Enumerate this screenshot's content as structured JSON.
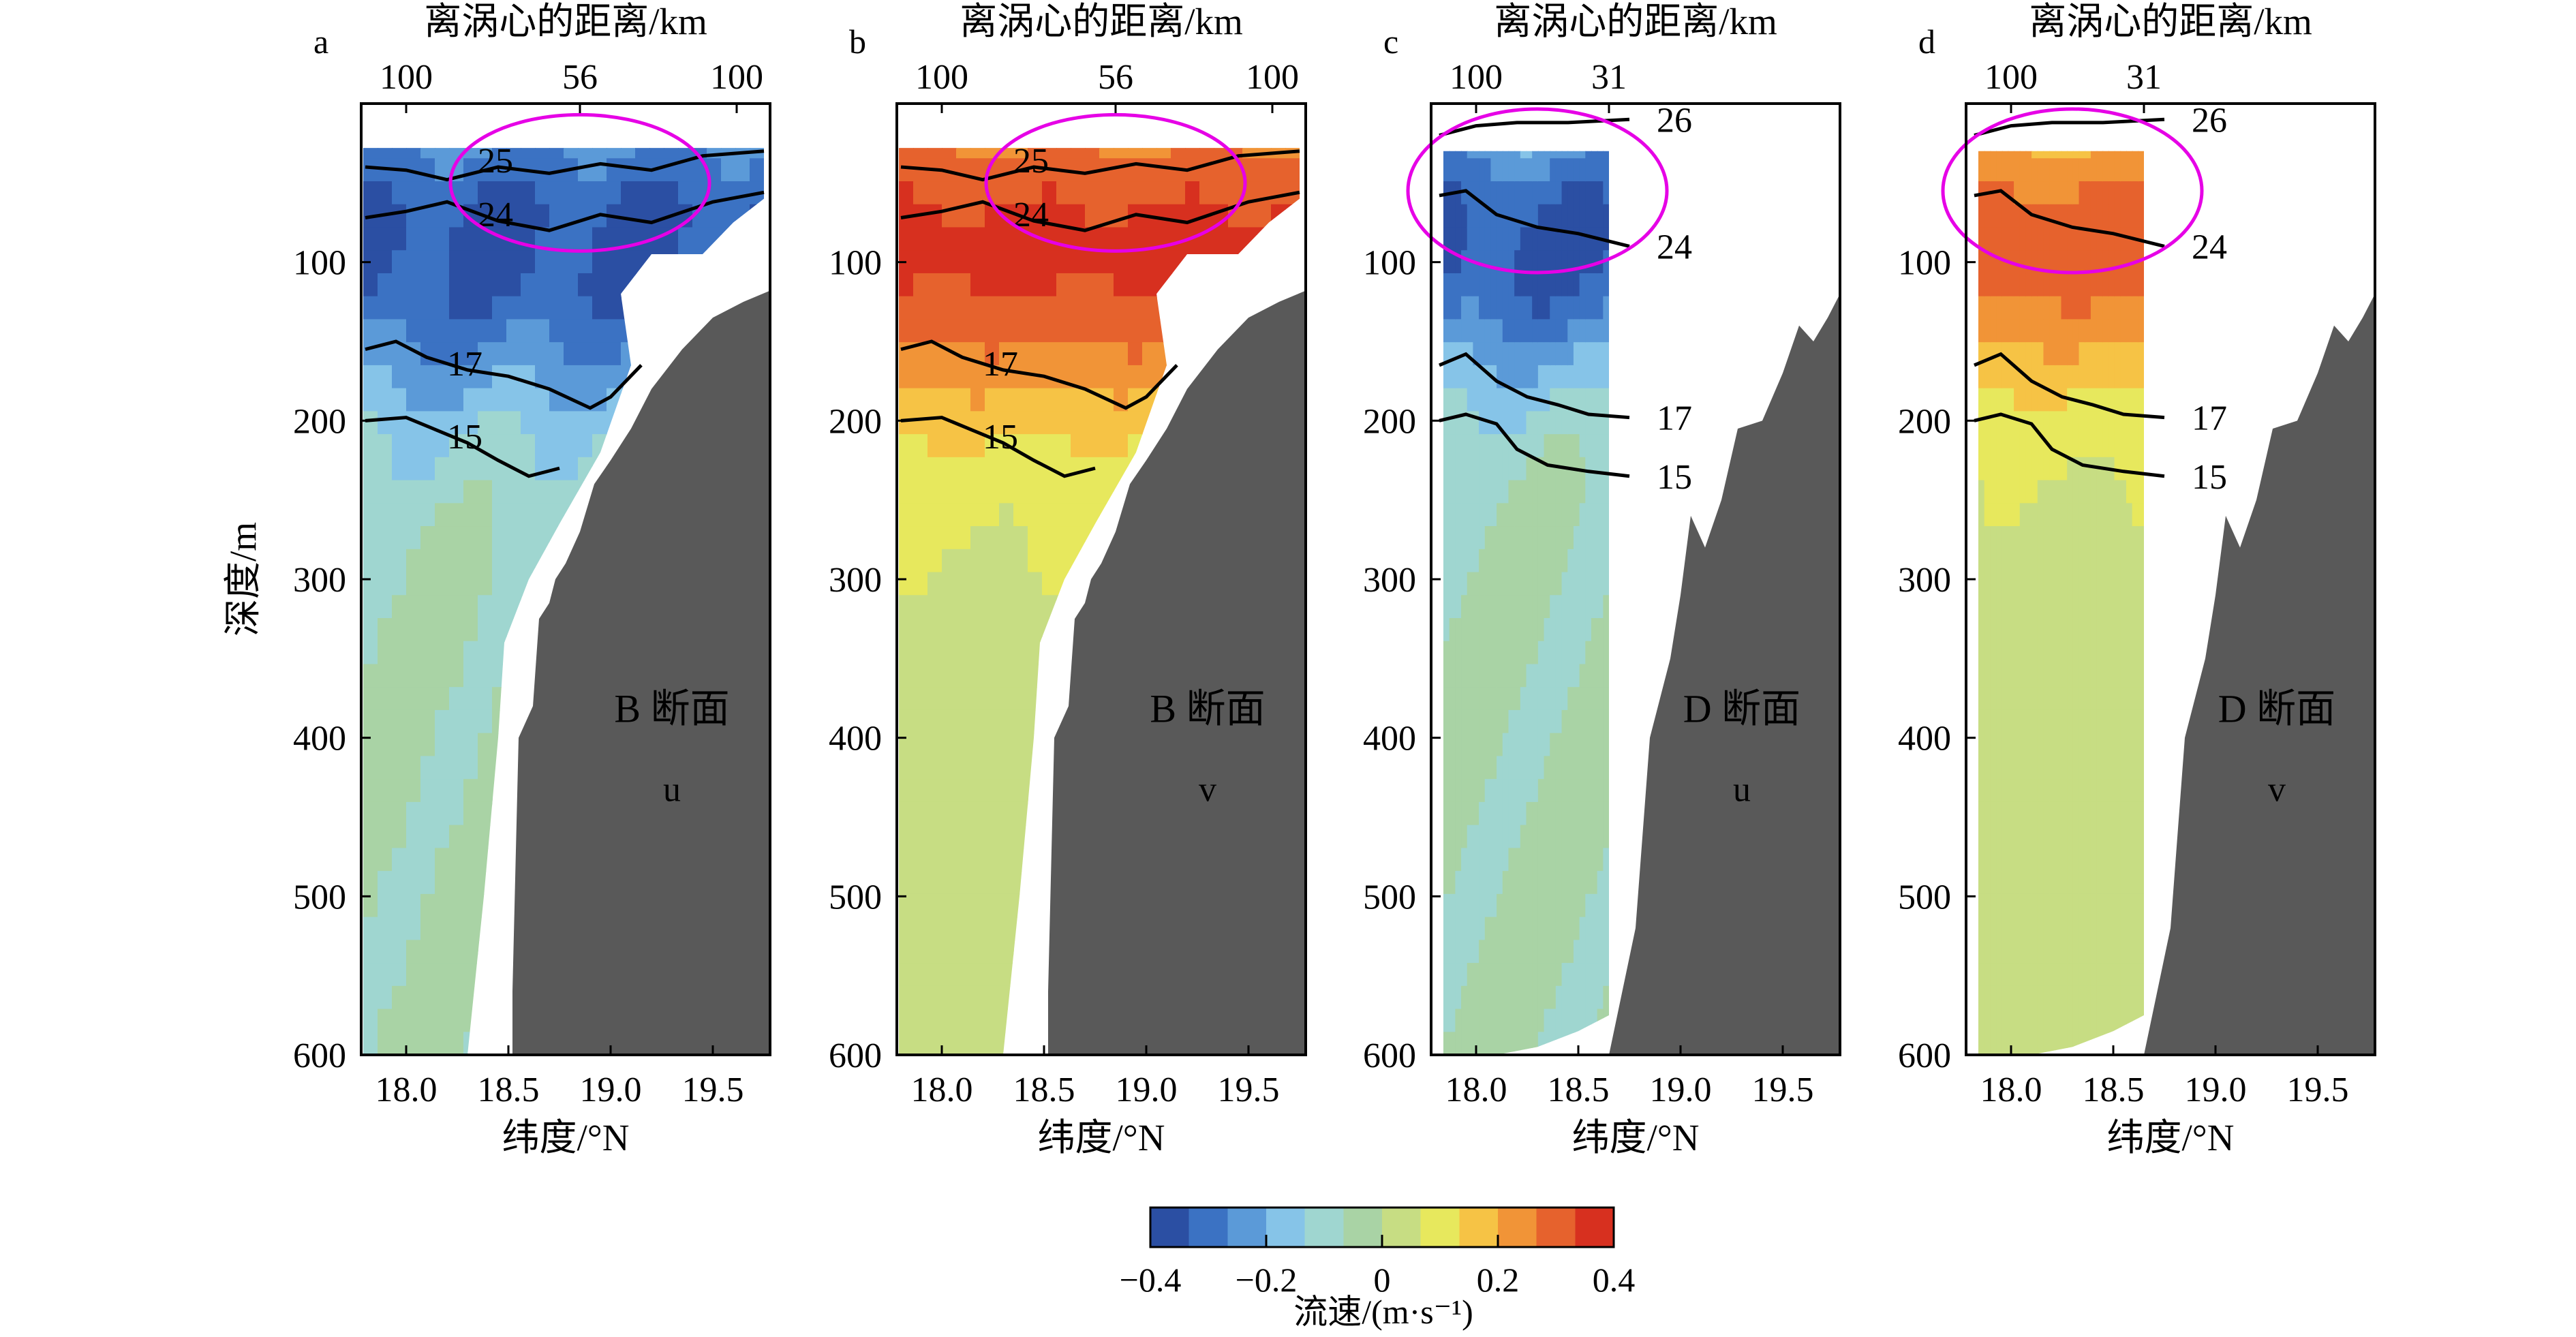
{
  "figure": {
    "panels": [
      {
        "letter": "a",
        "section_label": "B 断面",
        "component": "u",
        "top_axis_label": "离涡心的距离/km",
        "top_ticks": [
          "100",
          "56",
          "100"
        ],
        "ylabel": "深度/m",
        "xlabel": "纬度/°N"
      },
      {
        "letter": "b",
        "section_label": "B 断面",
        "component": "v",
        "top_axis_label": "离涡心的距离/km",
        "top_ticks": [
          "100",
          "56",
          "100"
        ],
        "ylabel": "",
        "xlabel": "纬度/°N"
      },
      {
        "letter": "c",
        "section_label": "D 断面",
        "component": "u",
        "top_axis_label": "离涡心的距离/km",
        "top_ticks": [
          "100",
          "31"
        ],
        "ylabel": "",
        "xlabel": "纬度/°N"
      },
      {
        "letter": "d",
        "section_label": "D 断面",
        "component": "v",
        "top_axis_label": "离涡心的距离/km",
        "top_ticks": [
          "100",
          "31"
        ],
        "ylabel": "",
        "xlabel": "纬度/°N"
      }
    ],
    "colorbar": {
      "label": "流速/(m·s⁻¹)",
      "ticks": [
        "−0.4",
        "−0.2",
        "0",
        "0.2",
        "0.4"
      ],
      "colors": [
        "#2b4fa3",
        "#3b72c3",
        "#5b9ad8",
        "#86c4e8",
        "#9fd6d0",
        "#a9d3a5",
        "#c7dd83",
        "#e7e85d",
        "#f6c345",
        "#f19437",
        "#e6622d",
        "#d7301f"
      ]
    },
    "colors": {
      "land": "#595959",
      "eddy_circle": "#e600e6",
      "contour": "#000000"
    }
  },
  "chart_data": [
    {
      "type": "heatmap",
      "title": "a",
      "section": "B 断面",
      "component": "u",
      "xlabel": "纬度/°N",
      "ylabel": "深度/m",
      "x2label": "离涡心的距离/km",
      "xlim": [
        17.78,
        19.78
      ],
      "ylim": [
        600,
        0
      ],
      "xticks": [
        18.0,
        18.5,
        19.0,
        19.5
      ],
      "yticks": [
        100,
        200,
        300,
        400,
        500,
        600
      ],
      "x2ticks": [
        "100",
        "56",
        "100"
      ],
      "colorbar_range": [
        -0.4,
        0.4
      ],
      "isotherms": [
        {
          "label": "25",
          "points": [
            [
              17.8,
              40
            ],
            [
              18.0,
              42
            ],
            [
              18.2,
              48
            ],
            [
              18.45,
              40
            ],
            [
              18.7,
              44
            ],
            [
              18.95,
              38
            ],
            [
              19.2,
              42
            ],
            [
              19.45,
              33
            ],
            [
              19.75,
              30
            ]
          ]
        },
        {
          "label": "24",
          "points": [
            [
              17.8,
              72
            ],
            [
              18.0,
              68
            ],
            [
              18.2,
              62
            ],
            [
              18.45,
              74
            ],
            [
              18.7,
              80
            ],
            [
              18.95,
              70
            ],
            [
              19.2,
              75
            ],
            [
              19.5,
              62
            ],
            [
              19.75,
              56
            ]
          ]
        },
        {
          "label": "17",
          "points": [
            [
              17.8,
              155
            ],
            [
              17.95,
              150
            ],
            [
              18.1,
              160
            ],
            [
              18.3,
              168
            ],
            [
              18.5,
              172
            ],
            [
              18.7,
              180
            ],
            [
              18.9,
              192
            ],
            [
              19.0,
              185
            ],
            [
              19.15,
              165
            ]
          ]
        },
        {
          "label": "15",
          "points": [
            [
              17.8,
              200
            ],
            [
              18.0,
              198
            ],
            [
              18.15,
              206
            ],
            [
              18.3,
              214
            ],
            [
              18.45,
              225
            ],
            [
              18.6,
              235
            ],
            [
              18.75,
              230
            ]
          ]
        }
      ],
      "eddy_core_u": -0.35
    },
    {
      "type": "heatmap",
      "title": "b",
      "section": "B 断面",
      "component": "v",
      "xlabel": "纬度/°N",
      "ylabel": "",
      "x2label": "离涡心的距离/km",
      "xlim": [
        17.78,
        19.78
      ],
      "ylim": [
        600,
        0
      ],
      "xticks": [
        18.0,
        18.5,
        19.0,
        19.5
      ],
      "yticks": [
        100,
        200,
        300,
        400,
        500,
        600
      ],
      "x2ticks": [
        "100",
        "56",
        "100"
      ],
      "colorbar_range": [
        -0.4,
        0.4
      ],
      "isotherms": [
        {
          "label": "25",
          "points": [
            [
              17.8,
              40
            ],
            [
              18.0,
              42
            ],
            [
              18.2,
              48
            ],
            [
              18.45,
              40
            ],
            [
              18.7,
              44
            ],
            [
              18.95,
              38
            ],
            [
              19.2,
              42
            ],
            [
              19.45,
              33
            ],
            [
              19.75,
              30
            ]
          ]
        },
        {
          "label": "24",
          "points": [
            [
              17.8,
              72
            ],
            [
              18.0,
              68
            ],
            [
              18.2,
              62
            ],
            [
              18.45,
              74
            ],
            [
              18.7,
              80
            ],
            [
              18.95,
              70
            ],
            [
              19.2,
              75
            ],
            [
              19.5,
              62
            ],
            [
              19.75,
              56
            ]
          ]
        },
        {
          "label": "17",
          "points": [
            [
              17.8,
              155
            ],
            [
              17.95,
              150
            ],
            [
              18.1,
              160
            ],
            [
              18.3,
              168
            ],
            [
              18.5,
              172
            ],
            [
              18.7,
              180
            ],
            [
              18.9,
              192
            ],
            [
              19.0,
              185
            ],
            [
              19.15,
              165
            ]
          ]
        },
        {
          "label": "15",
          "points": [
            [
              17.8,
              200
            ],
            [
              18.0,
              198
            ],
            [
              18.15,
              206
            ],
            [
              18.3,
              214
            ],
            [
              18.45,
              225
            ],
            [
              18.6,
              235
            ],
            [
              18.75,
              230
            ]
          ]
        }
      ],
      "eddy_core_v": 0.35
    },
    {
      "type": "heatmap",
      "title": "c",
      "section": "D 断面",
      "component": "u",
      "xlabel": "纬度/°N",
      "ylabel": "",
      "x2label": "离涡心的距离/km",
      "xlim": [
        17.78,
        19.78
      ],
      "ylim": [
        600,
        0
      ],
      "xticks": [
        18.0,
        18.5,
        19.0,
        19.5
      ],
      "yticks": [
        100,
        200,
        300,
        400,
        500,
        600
      ],
      "x2ticks": [
        "100",
        "31"
      ],
      "colorbar_range": [
        -0.4,
        0.4
      ],
      "isotherms": [
        {
          "label": "26",
          "points": [
            [
              17.82,
              20
            ],
            [
              18.0,
              14
            ],
            [
              18.2,
              12
            ],
            [
              18.45,
              12
            ],
            [
              18.75,
              10
            ]
          ]
        },
        {
          "label": "24",
          "points": [
            [
              17.82,
              58
            ],
            [
              17.95,
              55
            ],
            [
              18.1,
              70
            ],
            [
              18.3,
              78
            ],
            [
              18.5,
              82
            ],
            [
              18.75,
              90
            ]
          ]
        },
        {
          "label": "17",
          "points": [
            [
              17.82,
              165
            ],
            [
              17.95,
              158
            ],
            [
              18.1,
              175
            ],
            [
              18.25,
              185
            ],
            [
              18.4,
              190
            ],
            [
              18.55,
              196
            ],
            [
              18.75,
              198
            ]
          ]
        },
        {
          "label": "15",
          "points": [
            [
              17.82,
              200
            ],
            [
              17.95,
              196
            ],
            [
              18.1,
              202
            ],
            [
              18.2,
              218
            ],
            [
              18.35,
              228
            ],
            [
              18.55,
              232
            ],
            [
              18.75,
              235
            ]
          ]
        }
      ],
      "eddy_core_u": -0.35
    },
    {
      "type": "heatmap",
      "title": "d",
      "section": "D 断面",
      "component": "v",
      "xlabel": "纬度/°N",
      "ylabel": "",
      "x2label": "离涡心的距离/km",
      "xlim": [
        17.78,
        19.78
      ],
      "ylim": [
        600,
        0
      ],
      "xticks": [
        18.0,
        18.5,
        19.0,
        19.5
      ],
      "yticks": [
        100,
        200,
        300,
        400,
        500,
        600
      ],
      "x2ticks": [
        "100",
        "31"
      ],
      "colorbar_range": [
        -0.4,
        0.4
      ],
      "isotherms": [
        {
          "label": "26",
          "points": [
            [
              17.82,
              20
            ],
            [
              18.0,
              14
            ],
            [
              18.2,
              12
            ],
            [
              18.45,
              12
            ],
            [
              18.75,
              10
            ]
          ]
        },
        {
          "label": "24",
          "points": [
            [
              17.82,
              58
            ],
            [
              17.95,
              55
            ],
            [
              18.1,
              70
            ],
            [
              18.3,
              78
            ],
            [
              18.5,
              82
            ],
            [
              18.75,
              90
            ]
          ]
        },
        {
          "label": "17",
          "points": [
            [
              17.82,
              165
            ],
            [
              17.95,
              158
            ],
            [
              18.1,
              175
            ],
            [
              18.25,
              185
            ],
            [
              18.4,
              190
            ],
            [
              18.55,
              196
            ],
            [
              18.75,
              198
            ]
          ]
        },
        {
          "label": "15",
          "points": [
            [
              17.82,
              200
            ],
            [
              17.95,
              196
            ],
            [
              18.1,
              202
            ],
            [
              18.2,
              218
            ],
            [
              18.35,
              228
            ],
            [
              18.55,
              232
            ],
            [
              18.75,
              235
            ]
          ]
        }
      ],
      "eddy_core_v": 0.3
    }
  ]
}
